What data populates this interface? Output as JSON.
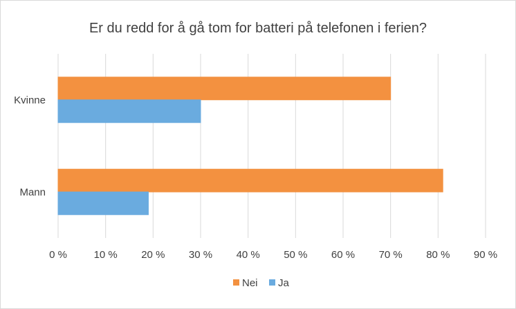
{
  "chart_data": {
    "type": "bar",
    "orientation": "horizontal",
    "title": "Er du redd for å gå tom for batteri på telefonen i ferien?",
    "categories": [
      "Kvinne",
      "Mann"
    ],
    "series": [
      {
        "name": "Nei",
        "values": [
          70,
          81
        ],
        "color": "#f39140"
      },
      {
        "name": "Ja",
        "values": [
          30,
          19
        ],
        "color": "#6aabdf"
      }
    ],
    "x_range": [
      0,
      90
    ],
    "x_ticks": [
      0,
      10,
      20,
      30,
      40,
      50,
      60,
      70,
      80,
      90
    ],
    "x_tick_labels": [
      "0 %",
      "10 %",
      "20 %",
      "30 %",
      "40 %",
      "50 %",
      "60 %",
      "70 %",
      "80 %",
      "90 %"
    ],
    "grid": true,
    "legend_position": "bottom"
  }
}
